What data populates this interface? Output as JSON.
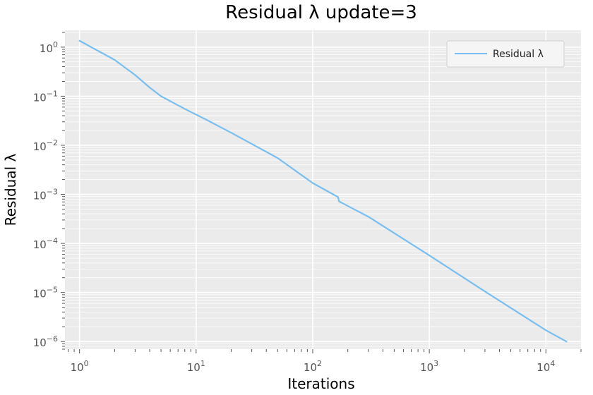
{
  "chart_data": {
    "type": "line",
    "title": "Residual λ update=3",
    "xlabel": "Iterations",
    "ylabel": "Residual λ",
    "xscale": "log",
    "yscale": "log",
    "xlim": [
      0.75,
      20000
    ],
    "ylim": [
      7e-07,
      2.2
    ],
    "grid": true,
    "legend_position": "top-right",
    "colors": {
      "line": "#79BEF0",
      "plot_bg": "#EBEBEB",
      "grid": "#FFFFFF"
    },
    "x_ticks": [
      {
        "base": "10",
        "exp": "0",
        "value": 1
      },
      {
        "base": "10",
        "exp": "1",
        "value": 10
      },
      {
        "base": "10",
        "exp": "2",
        "value": 100
      },
      {
        "base": "10",
        "exp": "3",
        "value": 1000
      },
      {
        "base": "10",
        "exp": "4",
        "value": 10000
      }
    ],
    "y_ticks": [
      {
        "base": "10",
        "exp": "0",
        "value": 1
      },
      {
        "base": "10",
        "exp": "−1",
        "value": 0.1
      },
      {
        "base": "10",
        "exp": "−2",
        "value": 0.01
      },
      {
        "base": "10",
        "exp": "−3",
        "value": 0.001
      },
      {
        "base": "10",
        "exp": "−4",
        "value": 0.0001
      },
      {
        "base": "10",
        "exp": "−5",
        "value": 1e-05
      },
      {
        "base": "10",
        "exp": "−6",
        "value": 1e-06
      }
    ],
    "series": [
      {
        "name": "Residual λ",
        "x": [
          1,
          2,
          3,
          4,
          5,
          8,
          12,
          20,
          50,
          100,
          165,
          168,
          300,
          1000,
          3000,
          10000,
          15000
        ],
        "y": [
          1.35,
          0.55,
          0.27,
          0.15,
          0.1,
          0.055,
          0.034,
          0.018,
          0.0055,
          0.0017,
          0.00088,
          0.00072,
          0.00035,
          5.7e-05,
          1.05e-05,
          1.7e-06,
          1e-06
        ]
      }
    ]
  }
}
